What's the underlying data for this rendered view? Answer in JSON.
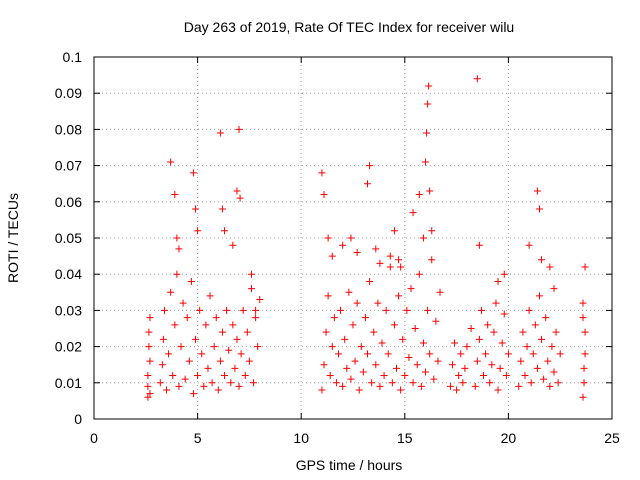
{
  "chart_data": {
    "type": "scatter",
    "title": "Day 263 of 2019, Rate Of TEC Index for receiver wilu",
    "xlabel": "GPS time / hours",
    "ylabel": "ROTI / TECUs",
    "xlim": [
      0,
      25
    ],
    "ylim": [
      0,
      0.1
    ],
    "xticks": [
      0,
      5,
      10,
      15,
      20,
      25
    ],
    "xtick_labels": [
      "0",
      "5",
      "10",
      "15",
      "20",
      "25"
    ],
    "yticks": [
      0,
      0.01,
      0.02,
      0.03,
      0.04,
      0.05,
      0.06,
      0.07,
      0.08,
      0.09,
      0.1
    ],
    "ytick_labels": [
      "0",
      "0.01",
      "0.02",
      "0.03",
      "0.04",
      "0.05",
      "0.06",
      "0.07",
      "0.08",
      "0.09",
      "0.1"
    ],
    "grid": true,
    "marker": "+",
    "color": "#ff0000",
    "series": [
      {
        "x": [
          2.6,
          2.6,
          2.65,
          2.7,
          2.6,
          2.7,
          2.65,
          2.7,
          3.2,
          3.3,
          3.35,
          3.4,
          3.5,
          3.6,
          3.7,
          3.8,
          3.9,
          4.0,
          4.1,
          4.2,
          4.3,
          4.4,
          4.5,
          4.6,
          4.7,
          4.8,
          4.9,
          5.0,
          5.1,
          5.2,
          5.3,
          5.4,
          5.5,
          5.6,
          5.7,
          5.8,
          5.9,
          6.0,
          6.1,
          6.2,
          6.3,
          6.4,
          6.5,
          6.6,
          6.7,
          6.8,
          6.9,
          7.0,
          7.1,
          7.2,
          7.3,
          7.4,
          7.5,
          7.6,
          7.7,
          7.8,
          7.9,
          8.0,
          3.7,
          3.9,
          4.0,
          4.1,
          4.8,
          4.9,
          5.0,
          6.1,
          6.2,
          6.3,
          6.7,
          6.9,
          7.0,
          7.05,
          7.6,
          7.8,
          11.0,
          11.1,
          11.2,
          11.3,
          11.4,
          11.5,
          11.6,
          11.7,
          11.8,
          11.9,
          12.0,
          12.1,
          12.2,
          12.3,
          12.4,
          12.5,
          12.6,
          12.7,
          12.8,
          12.9,
          13.0,
          13.1,
          13.2,
          13.3,
          13.4,
          13.5,
          13.6,
          13.7,
          13.8,
          13.9,
          14.0,
          14.1,
          14.2,
          14.3,
          14.4,
          14.5,
          14.6,
          14.7,
          14.8,
          14.9,
          15.0,
          15.1,
          15.2,
          15.3,
          15.4,
          15.5,
          15.6,
          15.7,
          15.8,
          15.9,
          16.0,
          16.1,
          16.2,
          16.3,
          16.4,
          16.5,
          16.6,
          16.7,
          11.0,
          11.1,
          11.3,
          11.5,
          12.0,
          12.4,
          12.7,
          13.2,
          13.3,
          13.6,
          13.8,
          14.3,
          14.5,
          14.7,
          14.8,
          15.4,
          15.7,
          15.9,
          16.0,
          16.05,
          16.1,
          16.15,
          16.2,
          16.3,
          17.2,
          17.3,
          17.4,
          17.5,
          17.6,
          17.7,
          17.8,
          17.9,
          18.0,
          18.2,
          18.4,
          18.5,
          18.6,
          18.7,
          18.8,
          18.9,
          19.0,
          19.1,
          19.2,
          19.3,
          19.4,
          19.5,
          19.6,
          19.7,
          19.8,
          19.9,
          20.0,
          18.5,
          18.6,
          19.5,
          19.8,
          20.5,
          20.6,
          20.7,
          20.8,
          20.9,
          21.0,
          21.1,
          21.2,
          21.3,
          21.4,
          21.5,
          21.6,
          21.7,
          21.8,
          21.9,
          22.0,
          22.1,
          22.2,
          22.3,
          22.4,
          22.5,
          21.0,
          21.4,
          21.5,
          21.6,
          22.0,
          22.2,
          23.6,
          23.65,
          23.7,
          23.6,
          23.7,
          23.65,
          23.7,
          23.6
        ],
        "y": [
          0.006,
          0.012,
          0.02,
          0.028,
          0.009,
          0.016,
          0.024,
          0.007,
          0.01,
          0.015,
          0.022,
          0.03,
          0.008,
          0.018,
          0.035,
          0.012,
          0.026,
          0.04,
          0.009,
          0.02,
          0.032,
          0.011,
          0.028,
          0.016,
          0.038,
          0.007,
          0.022,
          0.012,
          0.03,
          0.018,
          0.009,
          0.026,
          0.014,
          0.034,
          0.01,
          0.02,
          0.028,
          0.008,
          0.016,
          0.024,
          0.012,
          0.03,
          0.019,
          0.01,
          0.026,
          0.014,
          0.022,
          0.009,
          0.018,
          0.03,
          0.012,
          0.024,
          0.016,
          0.036,
          0.01,
          0.028,
          0.02,
          0.033,
          0.071,
          0.062,
          0.05,
          0.047,
          0.068,
          0.058,
          0.052,
          0.079,
          0.058,
          0.052,
          0.048,
          0.063,
          0.08,
          0.061,
          0.04,
          0.03,
          0.008,
          0.015,
          0.024,
          0.034,
          0.012,
          0.02,
          0.028,
          0.01,
          0.018,
          0.03,
          0.009,
          0.022,
          0.014,
          0.035,
          0.011,
          0.026,
          0.016,
          0.032,
          0.008,
          0.02,
          0.013,
          0.028,
          0.018,
          0.038,
          0.01,
          0.024,
          0.015,
          0.032,
          0.009,
          0.021,
          0.012,
          0.03,
          0.018,
          0.042,
          0.01,
          0.026,
          0.014,
          0.034,
          0.008,
          0.022,
          0.012,
          0.03,
          0.017,
          0.036,
          0.01,
          0.025,
          0.015,
          0.04,
          0.009,
          0.021,
          0.013,
          0.03,
          0.018,
          0.044,
          0.011,
          0.027,
          0.016,
          0.035,
          0.068,
          0.062,
          0.05,
          0.045,
          0.048,
          0.05,
          0.046,
          0.065,
          0.07,
          0.047,
          0.043,
          0.045,
          0.052,
          0.044,
          0.042,
          0.057,
          0.062,
          0.05,
          0.071,
          0.079,
          0.087,
          0.092,
          0.063,
          0.052,
          0.009,
          0.015,
          0.021,
          0.008,
          0.012,
          0.018,
          0.01,
          0.014,
          0.02,
          0.025,
          0.009,
          0.016,
          0.022,
          0.03,
          0.012,
          0.018,
          0.026,
          0.01,
          0.015,
          0.024,
          0.032,
          0.008,
          0.014,
          0.021,
          0.029,
          0.012,
          0.018,
          0.094,
          0.048,
          0.038,
          0.04,
          0.009,
          0.016,
          0.024,
          0.012,
          0.02,
          0.03,
          0.01,
          0.018,
          0.026,
          0.014,
          0.034,
          0.022,
          0.011,
          0.028,
          0.016,
          0.009,
          0.02,
          0.013,
          0.024,
          0.01,
          0.018,
          0.048,
          0.063,
          0.058,
          0.044,
          0.042,
          0.036,
          0.006,
          0.014,
          0.024,
          0.032,
          0.042,
          0.01,
          0.018,
          0.028
        ]
      }
    ]
  }
}
